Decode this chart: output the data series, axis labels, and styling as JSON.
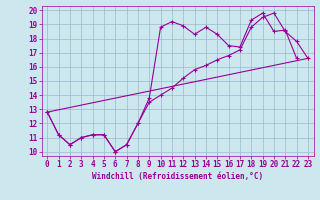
{
  "title": "",
  "xlabel": "Windchill (Refroidissement éolien,°C)",
  "bg_color": "#cce8ee",
  "line_color": "#990099",
  "grid_color": "#99bbcc",
  "xlim": [
    -0.5,
    23.5
  ],
  "ylim": [
    9.7,
    20.3
  ],
  "xticks": [
    0,
    1,
    2,
    3,
    4,
    5,
    6,
    7,
    8,
    9,
    10,
    11,
    12,
    13,
    14,
    15,
    16,
    17,
    18,
    19,
    20,
    21,
    22,
    23
  ],
  "yticks": [
    10,
    11,
    12,
    13,
    14,
    15,
    16,
    17,
    18,
    19,
    20
  ],
  "line1_x": [
    0,
    1,
    2,
    3,
    4,
    5,
    6,
    7,
    8,
    9,
    10,
    11,
    12,
    13,
    14,
    15,
    16,
    17,
    18,
    19,
    20,
    21,
    22
  ],
  "line1_y": [
    12.8,
    11.2,
    10.5,
    11.0,
    11.2,
    11.2,
    10.0,
    10.5,
    12.0,
    13.8,
    18.8,
    19.2,
    18.9,
    18.3,
    18.8,
    18.3,
    17.5,
    17.4,
    19.3,
    19.8,
    18.5,
    18.6,
    16.6
  ],
  "line2_x": [
    0,
    1,
    2,
    3,
    4,
    5,
    6,
    7,
    8,
    9,
    10,
    11,
    12,
    13,
    14,
    15,
    16,
    17,
    18,
    19,
    20,
    21,
    22,
    23
  ],
  "line2_y": [
    12.8,
    11.2,
    10.5,
    11.0,
    11.2,
    11.2,
    10.0,
    10.5,
    12.0,
    13.5,
    14.0,
    14.5,
    15.2,
    15.8,
    16.1,
    16.5,
    16.8,
    17.2,
    18.8,
    19.5,
    19.8,
    18.5,
    17.8,
    16.6
  ],
  "line3_x": [
    0,
    23
  ],
  "line3_y": [
    12.8,
    16.6
  ],
  "marker": "+",
  "tick_fontsize": 5.5,
  "xlabel_fontsize": 5.5
}
